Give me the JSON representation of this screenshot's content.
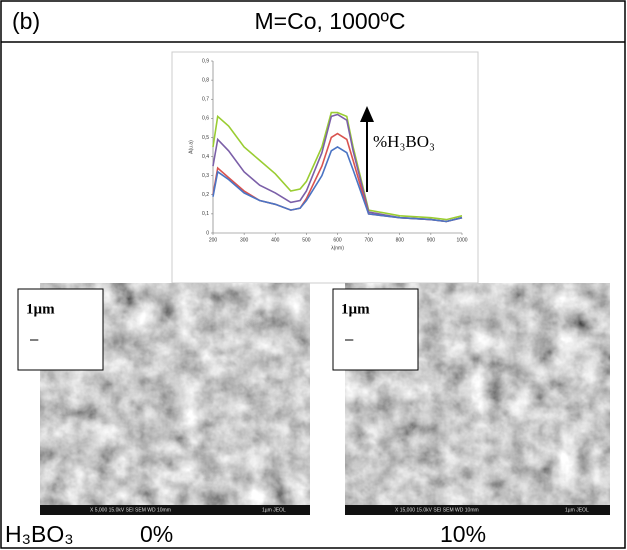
{
  "header": {
    "label": "(b)",
    "title": "M=Co, 1000ºC"
  },
  "chart_data": {
    "type": "line",
    "xlabel": "λ(nm)",
    "ylabel": "A(u.a)",
    "annotation": "%H₃BO₃",
    "x": [
      200,
      215,
      250,
      300,
      350,
      400,
      450,
      480,
      500,
      550,
      580,
      600,
      630,
      650,
      700,
      800,
      900,
      950,
      1000
    ],
    "series": [
      {
        "color": "#9acd32",
        "values": [
          0.45,
          0.61,
          0.56,
          0.45,
          0.38,
          0.31,
          0.22,
          0.23,
          0.27,
          0.45,
          0.63,
          0.63,
          0.61,
          0.45,
          0.12,
          0.09,
          0.08,
          0.07,
          0.09
        ]
      },
      {
        "color": "#7b5fa8",
        "values": [
          0.35,
          0.49,
          0.43,
          0.32,
          0.25,
          0.21,
          0.16,
          0.17,
          0.22,
          0.42,
          0.61,
          0.62,
          0.59,
          0.43,
          0.11,
          0.08,
          0.07,
          0.06,
          0.08
        ]
      },
      {
        "color": "#d9534f",
        "values": [
          0.2,
          0.34,
          0.29,
          0.22,
          0.17,
          0.15,
          0.12,
          0.13,
          0.18,
          0.35,
          0.5,
          0.52,
          0.49,
          0.38,
          0.1,
          0.08,
          0.07,
          0.06,
          0.08
        ]
      },
      {
        "color": "#4a74c4",
        "values": [
          0.19,
          0.32,
          0.28,
          0.21,
          0.17,
          0.15,
          0.12,
          0.13,
          0.17,
          0.3,
          0.43,
          0.45,
          0.42,
          0.33,
          0.1,
          0.08,
          0.07,
          0.06,
          0.08
        ]
      }
    ],
    "xlim": [
      200,
      1000
    ],
    "xticks": [
      200,
      300,
      400,
      500,
      600,
      700,
      800,
      900,
      1000
    ],
    "ylim": [
      0,
      0.9
    ],
    "yticks": [
      0,
      {
        "value": 0.1,
        "label": "0,1"
      },
      {
        "value": 0.2,
        "label": "0,2"
      },
      {
        "value": 0.3,
        "label": "0,3"
      },
      {
        "value": 0.4,
        "label": "0,4"
      },
      {
        "value": 0.5,
        "label": "0,5"
      },
      {
        "value": 0.6,
        "label": "0,6"
      },
      {
        "value": 0.7,
        "label": "0,7"
      },
      {
        "value": 0.8,
        "label": "0,8"
      },
      {
        "value": 0.9,
        "label": "0,9"
      }
    ]
  },
  "images": [
    {
      "scale": "1µm",
      "bar": "–",
      "footer": "X 5,000   15.0kV SEI   SEM   WD 10mm",
      "bar_label": "1µm  JEOL",
      "caption": "0%"
    },
    {
      "scale": "1µm",
      "bar": "–",
      "footer": "X 15,000   15.0kV SEI   SEM   WD 10mm",
      "bar_label": "1µm  JEOL",
      "caption": "10%"
    }
  ],
  "footer": {
    "label": "H₃BO₃"
  }
}
